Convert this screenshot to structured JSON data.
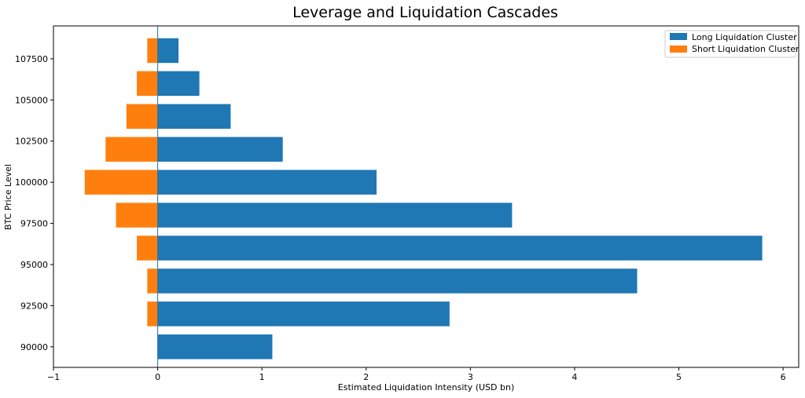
{
  "chart_data": {
    "type": "bar",
    "orientation": "horizontal",
    "title": "Leverage and Liquidation Cascades",
    "xlabel": "Estimated Liquidation Intensity (USD bn)",
    "ylabel": "BTC Price Level",
    "xlim": [
      -1.0,
      6.15
    ],
    "ylim": [
      88750,
      109500
    ],
    "bar_height": 1500,
    "price_levels": [
      90000,
      92000,
      94000,
      96000,
      98000,
      100000,
      102000,
      104000,
      106000,
      108000
    ],
    "x_ticks": [
      -1,
      0,
      1,
      2,
      3,
      4,
      5,
      6
    ],
    "x_tick_labels": [
      "−1",
      "0",
      "1",
      "2",
      "3",
      "4",
      "5",
      "6"
    ],
    "y_ticks": [
      90000,
      92500,
      95000,
      97500,
      100000,
      102500,
      105000,
      107500
    ],
    "y_tick_labels": [
      "90000",
      "92500",
      "95000",
      "97500",
      "100000",
      "102500",
      "105000",
      "107500"
    ],
    "reference_line_x": 0,
    "series": [
      {
        "name": "Long Liquidation Cluster",
        "color": "#1f77b4",
        "values": [
          1.1,
          2.8,
          4.6,
          5.8,
          3.4,
          2.1,
          1.2,
          0.7,
          0.4,
          0.2
        ]
      },
      {
        "name": "Short Liquidation Cluster",
        "color": "#ff7f0e",
        "values": [
          0.0,
          -0.1,
          -0.1,
          -0.2,
          -0.4,
          -0.7,
          -0.5,
          -0.3,
          -0.2,
          -0.1
        ]
      }
    ],
    "legend_position": "top-right",
    "grid": false
  }
}
